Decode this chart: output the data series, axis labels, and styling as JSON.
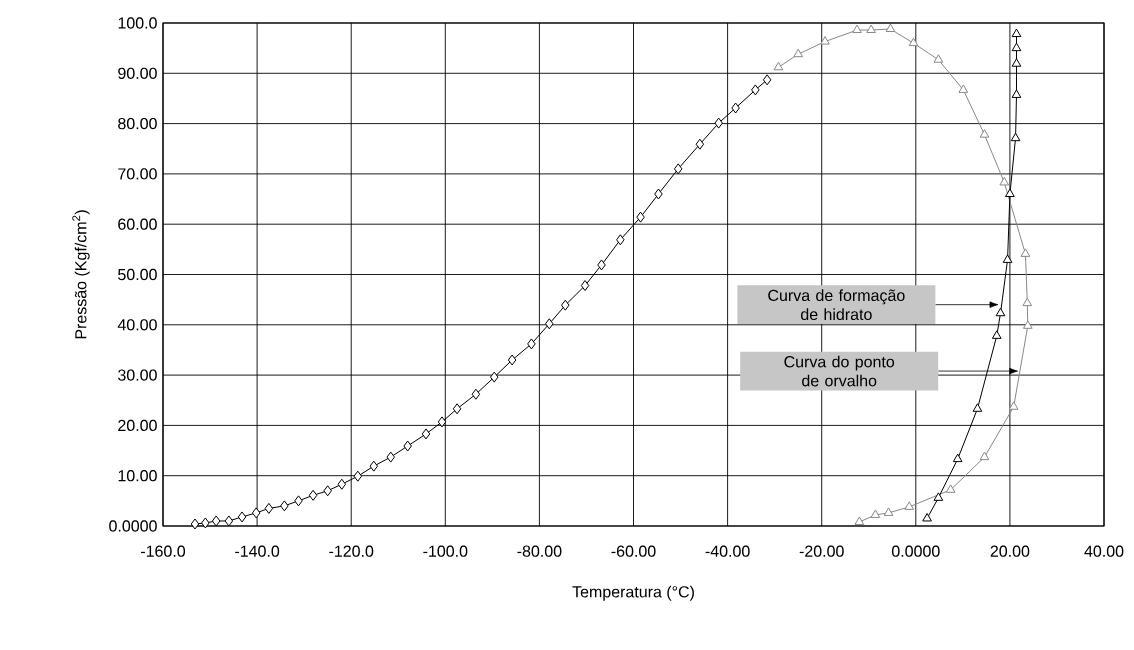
{
  "chart_data": {
    "type": "line",
    "xlabel": "Temperatura (°C)",
    "ylabel": "Pressão (Kgf/cm$^{2}$)",
    "xlim": [
      -160,
      40
    ],
    "ylim": [
      0,
      100
    ],
    "xticks": [
      {
        "value": -160,
        "label": "-160.0"
      },
      {
        "value": -140,
        "label": "-140.0"
      },
      {
        "value": -120,
        "label": "-120.0"
      },
      {
        "value": -100,
        "label": "-100.0"
      },
      {
        "value": -80,
        "label": "-80.00"
      },
      {
        "value": -60,
        "label": "-60.00"
      },
      {
        "value": -40,
        "label": "-40.00"
      },
      {
        "value": -20,
        "label": "-20.00"
      },
      {
        "value": 0,
        "label": "0.0000"
      },
      {
        "value": 20,
        "label": "20.00"
      },
      {
        "value": 40,
        "label": "40.00"
      }
    ],
    "yticks": [
      {
        "value": 0,
        "label": "0.0000"
      },
      {
        "value": 10,
        "label": "10.00"
      },
      {
        "value": 20,
        "label": "20.00"
      },
      {
        "value": 30,
        "label": "30.00"
      },
      {
        "value": 40,
        "label": "40.00"
      },
      {
        "value": 50,
        "label": "50.00"
      },
      {
        "value": 60,
        "label": "60.00"
      },
      {
        "value": 70,
        "label": "70.00"
      },
      {
        "value": 80,
        "label": "80.00"
      },
      {
        "value": 90,
        "label": "90.00"
      },
      {
        "value": 100,
        "label": "100.0"
      }
    ],
    "grid": true,
    "series": [
      {
        "color": "#000000",
        "marker": "diamond",
        "x": [
          -153.2,
          -151,
          -148.7,
          -146,
          -143.2,
          -140.2,
          -137.5,
          -134.2,
          -131.2,
          -128.1,
          -125,
          -122,
          -118.6,
          -115.2,
          -111.6,
          -108,
          -104.1,
          -100.7,
          -97.5,
          -93.5,
          -89.6,
          -85.8,
          -81.7,
          -77.9,
          -74.5,
          -70.3,
          -66.8,
          -62.8,
          -58.5,
          -54.7,
          -50.5,
          -45.9,
          -41.9,
          -38.3,
          -34.1,
          -31.6
        ],
        "values": [
          0.4,
          0.6,
          1,
          1,
          1.8,
          2.6,
          3.5,
          4,
          5,
          6.1,
          7,
          8.3,
          9.9,
          11.9,
          13.7,
          15.9,
          18.3,
          20.7,
          23.3,
          26.2,
          29.6,
          33,
          36.2,
          40.2,
          43.9,
          47.8,
          51.9,
          56.9,
          61.4,
          66,
          71,
          75.9,
          80.1,
          83.1,
          86.7,
          88.7
        ]
      },
      {
        "color": "#888888",
        "marker": "triangle",
        "x": [
          -12,
          -8.6,
          -5.8,
          -1.4,
          7.4,
          14.6,
          20.8,
          23.8,
          23.7,
          23.3,
          18.8,
          14.6,
          10.1,
          4.8,
          -0.5,
          -5.4,
          -9.5,
          -12.5,
          -19.3,
          -25,
          -29.2
        ],
        "values": [
          0.8,
          2.2,
          2.6,
          3.8,
          7.2,
          13.7,
          23.7,
          39.8,
          44.3,
          54.1,
          68.3,
          77.8,
          86.7,
          92.7,
          96,
          98.8,
          98.6,
          98.6,
          96.3,
          93.8,
          91.2
        ]
      },
      {
        "color": "#000000",
        "marker": "triangle",
        "x": [
          2.4,
          4.8,
          8.9,
          13.1,
          17.2,
          18,
          19.5,
          20,
          21.2,
          21.4,
          21.4,
          21.4,
          21.4
        ],
        "values": [
          1.5,
          5.6,
          13.3,
          23.3,
          37.8,
          42.3,
          52.9,
          66,
          77.1,
          85.7,
          91.9,
          95,
          97.8
        ]
      }
    ],
    "annotations": [
      "Curva de formação de hidrato",
      "Curva do ponto de orvalho"
    ]
  }
}
